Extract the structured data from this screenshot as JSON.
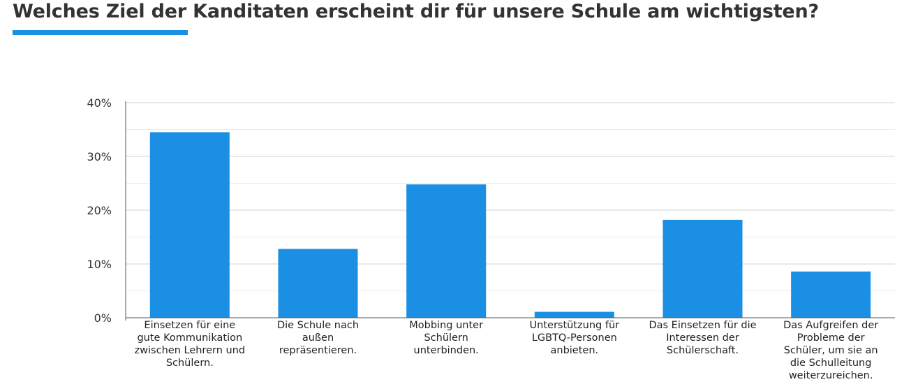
{
  "page": {
    "title": "Welches Ziel der Kanditaten erscheint dir für unsere Schule am wichtigsten?"
  },
  "colors": {
    "bar": "#1a8fe3",
    "accent": "#1a8fe3",
    "grid_major": "#d0d0d0",
    "grid_minor": "#ececec",
    "axis": "#555555"
  },
  "chart_data": {
    "type": "bar",
    "title": "Welches Ziel der Kanditaten erscheint dir für unsere Schule am wichtigsten?",
    "xlabel": "",
    "ylabel": "",
    "ylim": [
      0,
      40
    ],
    "yticks": [
      0,
      10,
      20,
      30,
      40
    ],
    "ytick_labels": [
      "0%",
      "10%",
      "20%",
      "30%",
      "40%"
    ],
    "grid": true,
    "legend": "none",
    "categories": [
      "Einsetzen für eine gute Kommunikation zwischen Lehrern und Schülern.",
      "Die Schule nach außen repräsentieren.",
      "Mobbing unter Schülern unterbinden.",
      "Unterstützung für LGBTQ-Personen anbieten.",
      "Das Einsetzen für die Interessen der Schülerschaft.",
      "Das Aufgreifen der Probleme der Schüler, um sie an die Schulleitung weiterzureichen."
    ],
    "values": [
      34.5,
      12.8,
      24.8,
      1.1,
      18.2,
      8.6
    ]
  }
}
